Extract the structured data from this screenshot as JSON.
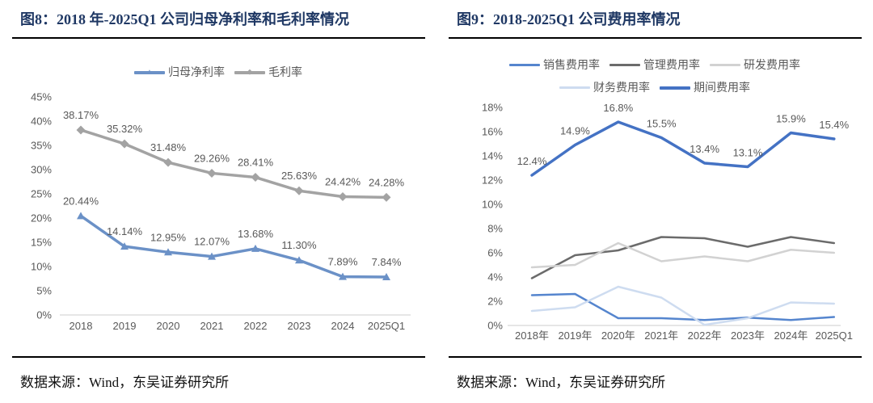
{
  "panels": [
    {
      "title": "图8：2018 年-2025Q1 公司归母净利率和毛利率情况",
      "source": "数据来源：Wind，东吴证券研究所"
    },
    {
      "title": "图9：2018-2025Q1 公司费用率情况",
      "source": "数据来源：Wind，东吴证券研究所"
    }
  ],
  "colors": {
    "title": "#1F3864",
    "axis_text": "#595959",
    "axis_line": "#D6D6D6",
    "rule": "#000000"
  },
  "chart_data": [
    {
      "type": "line",
      "title": "图8：2018 年-2025Q1 公司归母净利率和毛利率情况",
      "xlabel": "",
      "ylabel": "",
      "ylim": [
        0,
        45
      ],
      "ytick_step": 5,
      "ytick_format": "percent",
      "grid": false,
      "legend_position": "top",
      "categories": [
        "2018",
        "2019",
        "2020",
        "2021",
        "2022",
        "2023",
        "2024",
        "2025Q1"
      ],
      "series": [
        {
          "name": "归母净利率",
          "color": "#6B91C7",
          "marker": "triangle",
          "line_width": 3.5,
          "values": [
            20.44,
            14.14,
            12.95,
            12.07,
            13.68,
            11.3,
            7.89,
            7.84
          ],
          "labels": [
            "20.44%",
            "14.14%",
            "12.95%",
            "12.07%",
            "13.68%",
            "11.30%",
            "7.89%",
            "7.84%"
          ]
        },
        {
          "name": "毛利率",
          "color": "#A3A3A3",
          "marker": "diamond",
          "line_width": 3.5,
          "values": [
            38.17,
            35.32,
            31.48,
            29.26,
            28.41,
            25.63,
            24.42,
            24.28
          ],
          "labels": [
            "38.17%",
            "35.32%",
            "31.48%",
            "29.26%",
            "28.41%",
            "25.63%",
            "24.42%",
            "24.28%"
          ]
        }
      ]
    },
    {
      "type": "line",
      "title": "图9：2018-2025Q1 公司费用率情况",
      "xlabel": "",
      "ylabel": "",
      "ylim": [
        0,
        18
      ],
      "ytick_step": 2,
      "ytick_format": "percent",
      "grid": false,
      "legend_position": "top",
      "categories": [
        "2018年",
        "2019年",
        "2020年",
        "2021年",
        "2022年",
        "2023年",
        "2024年",
        "2025Q1"
      ],
      "series": [
        {
          "name": "销售费用率",
          "color": "#5585CE",
          "marker": null,
          "line_width": 2.5,
          "values": [
            2.5,
            2.6,
            0.6,
            0.6,
            0.45,
            0.65,
            0.45,
            0.7
          ]
        },
        {
          "name": "管理费用率",
          "color": "#6B6B6B",
          "marker": null,
          "line_width": 2.5,
          "values": [
            3.9,
            5.8,
            6.2,
            7.3,
            7.2,
            6.5,
            7.3,
            6.8
          ]
        },
        {
          "name": "研发费用率",
          "color": "#D2D2D2",
          "marker": null,
          "line_width": 2.5,
          "values": [
            4.8,
            5.0,
            6.8,
            5.3,
            5.7,
            5.3,
            6.25,
            6.0
          ]
        },
        {
          "name": "财务费用率",
          "color": "#CEDCF0",
          "marker": null,
          "line_width": 2.5,
          "values": [
            1.2,
            1.5,
            3.2,
            2.3,
            0.05,
            0.6,
            1.9,
            1.8
          ]
        },
        {
          "name": "期间费用率",
          "color": "#4472C4",
          "marker": null,
          "line_width": 3.5,
          "values": [
            12.4,
            14.9,
            16.8,
            15.5,
            13.4,
            13.1,
            15.9,
            15.4
          ],
          "labels": [
            "12.4%",
            "14.9%",
            "16.8%",
            "15.5%",
            "13.4%",
            "13.1%",
            "15.9%",
            "15.4%"
          ]
        }
      ]
    }
  ]
}
